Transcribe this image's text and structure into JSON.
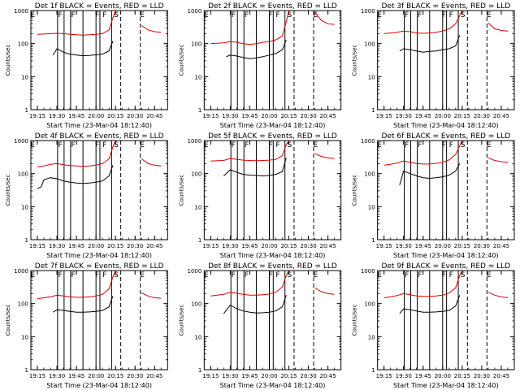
{
  "chart_data": [
    {
      "type": "line",
      "title": "Det 1f BLACK = Events, RED = LLD",
      "xlabel": "Start Time (23-Mar-04 18:12:40)",
      "ylabel": "Counts/sec",
      "xticks": [
        "19:15",
        "19:30",
        "19:45",
        "20:00",
        "20:15",
        "20:30",
        "20:45"
      ],
      "yticks": [
        "1",
        "10",
        "100",
        "1000"
      ],
      "yscale": "log",
      "ylim": [
        1,
        1000
      ],
      "markers": [
        "E",
        "F",
        "F",
        "F",
        "F",
        "S",
        "E"
      ],
      "series": [
        {
          "name": "Events",
          "color": "#000000",
          "x": [
            "19:27",
            "19:30",
            "19:35",
            "19:40",
            "19:45",
            "19:50",
            "19:55",
            "20:00",
            "20:05",
            "20:10",
            "20:13"
          ],
          "y": [
            45,
            70,
            55,
            48,
            45,
            43,
            44,
            46,
            48,
            60,
            120
          ]
        },
        {
          "name": "LLD",
          "color": "#dd0000",
          "x": [
            "19:15",
            "19:20",
            "19:25",
            "19:30",
            "19:35",
            "19:40",
            "19:45",
            "19:50",
            "19:55",
            "20:00",
            "20:05",
            "20:10",
            "20:13",
            "20:15",
            "20:35",
            "20:40",
            "20:45",
            "20:50"
          ],
          "y": [
            190,
            195,
            200,
            205,
            200,
            190,
            185,
            180,
            185,
            190,
            200,
            260,
            600,
            1000,
            350,
            260,
            230,
            220
          ]
        }
      ]
    },
    {
      "type": "line",
      "title": "Det 2f BLACK = Events, RED = LLD",
      "xlabel": "Start Time (23-Mar-04 18:12:40)",
      "ylabel": "Counts/sec",
      "xticks": [
        "19:15",
        "19:30",
        "19:45",
        "20:00",
        "20:15",
        "20:30",
        "20:45"
      ],
      "yticks": [
        "1",
        "10",
        "100",
        "1000"
      ],
      "yscale": "log",
      "ylim": [
        1,
        1000
      ],
      "markers": [
        "E",
        "F",
        "F",
        "F",
        "F",
        "S",
        "E"
      ],
      "series": [
        {
          "name": "Events",
          "color": "#000000",
          "x": [
            "19:27",
            "19:30",
            "19:35",
            "19:40",
            "19:45",
            "19:50",
            "19:55",
            "20:00",
            "20:05",
            "20:10",
            "20:13"
          ],
          "y": [
            40,
            45,
            42,
            38,
            35,
            37,
            40,
            45,
            50,
            65,
            130
          ]
        },
        {
          "name": "LLD",
          "color": "#dd0000",
          "x": [
            "19:15",
            "19:20",
            "19:25",
            "19:30",
            "19:35",
            "19:40",
            "19:45",
            "19:50",
            "19:55",
            "20:00",
            "20:05",
            "20:10",
            "20:13",
            "20:15",
            "20:35",
            "20:40",
            "20:45",
            "20:50"
          ],
          "y": [
            100,
            102,
            105,
            115,
            110,
            100,
            95,
            100,
            110,
            115,
            130,
            170,
            450,
            1000,
            900,
            500,
            400,
            380
          ]
        }
      ]
    },
    {
      "type": "line",
      "title": "Det 3f BLACK = Events, RED = LLD",
      "xlabel": "Start Time (23-Mar-04 18:12:40)",
      "ylabel": "Counts/sec",
      "xticks": [
        "19:15",
        "19:30",
        "19:45",
        "20:00",
        "20:15",
        "20:30",
        "20:45"
      ],
      "yticks": [
        "1",
        "10",
        "100",
        "1000"
      ],
      "yscale": "log",
      "ylim": [
        1,
        1000
      ],
      "markers": [
        "E",
        "F",
        "F",
        "F",
        "F",
        "S",
        "E"
      ],
      "series": [
        {
          "name": "Events",
          "color": "#000000",
          "x": [
            "19:27",
            "19:30",
            "19:35",
            "19:40",
            "19:45",
            "19:50",
            "19:55",
            "20:00",
            "20:05",
            "20:10",
            "20:13"
          ],
          "y": [
            60,
            70,
            65,
            60,
            55,
            58,
            60,
            65,
            70,
            85,
            180
          ]
        },
        {
          "name": "LLD",
          "color": "#dd0000",
          "x": [
            "19:15",
            "19:20",
            "19:25",
            "19:30",
            "19:35",
            "19:40",
            "19:45",
            "19:50",
            "19:55",
            "20:00",
            "20:05",
            "20:10",
            "20:13",
            "20:15",
            "20:35",
            "20:40",
            "20:45",
            "20:50"
          ],
          "y": [
            200,
            210,
            220,
            240,
            230,
            210,
            205,
            210,
            220,
            240,
            280,
            400,
            700,
            1000,
            420,
            280,
            250,
            240
          ]
        }
      ]
    },
    {
      "type": "line",
      "title": "Det 4f BLACK = Events, RED = LLD",
      "xlabel": "Start Time (23-Mar-04 18:12:40)",
      "ylabel": "Counts/sec",
      "xticks": [
        "19:15",
        "19:30",
        "19:45",
        "20:00",
        "20:15",
        "20:30",
        "20:45"
      ],
      "yticks": [
        "1",
        "10",
        "100",
        "1000"
      ],
      "yscale": "log",
      "ylim": [
        1,
        1000
      ],
      "markers": [
        "E",
        "F",
        "F",
        "F",
        "F",
        "S",
        "E"
      ],
      "series": [
        {
          "name": "Events",
          "color": "#000000",
          "x": [
            "19:15",
            "19:18",
            "19:20",
            "19:25",
            "19:30",
            "19:35",
            "19:40",
            "19:45",
            "19:50",
            "19:55",
            "20:00",
            "20:05",
            "20:10",
            "20:13"
          ],
          "y": [
            35,
            40,
            65,
            75,
            70,
            60,
            55,
            52,
            50,
            52,
            55,
            60,
            85,
            180
          ]
        },
        {
          "name": "LLD",
          "color": "#dd0000",
          "x": [
            "19:15",
            "19:20",
            "19:25",
            "19:30",
            "19:35",
            "19:40",
            "19:45",
            "19:50",
            "19:55",
            "20:00",
            "20:05",
            "20:10",
            "20:13",
            "20:15",
            "20:35",
            "20:40",
            "20:45",
            "20:50"
          ],
          "y": [
            160,
            170,
            190,
            200,
            185,
            175,
            170,
            165,
            170,
            180,
            200,
            280,
            650,
            1000,
            280,
            200,
            180,
            170
          ]
        }
      ]
    },
    {
      "type": "line",
      "title": "Det 5f BLACK = Events, RED = LLD",
      "xlabel": "Start Time (23-Mar-04 18:12:40)",
      "ylabel": "Counts/sec",
      "xticks": [
        "19:15",
        "19:30",
        "19:45",
        "20:00",
        "20:15",
        "20:30",
        "20:45"
      ],
      "yticks": [
        "1",
        "10",
        "100",
        "1000"
      ],
      "yscale": "log",
      "ylim": [
        1,
        1000
      ],
      "markers": [
        "E",
        "F",
        "F",
        "F",
        "F",
        "S",
        "E"
      ],
      "series": [
        {
          "name": "Events",
          "color": "#000000",
          "x": [
            "19:25",
            "19:30",
            "19:35",
            "19:40",
            "19:45",
            "19:50",
            "19:55",
            "20:00",
            "20:05",
            "20:10",
            "20:13"
          ],
          "y": [
            85,
            130,
            110,
            95,
            90,
            88,
            85,
            88,
            95,
            115,
            300
          ]
        },
        {
          "name": "LLD",
          "color": "#dd0000",
          "x": [
            "19:15",
            "19:20",
            "19:25",
            "19:30",
            "19:35",
            "19:40",
            "19:45",
            "19:50",
            "19:55",
            "20:00",
            "20:05",
            "20:10",
            "20:13",
            "20:15",
            "20:35",
            "20:40",
            "20:45",
            "20:50"
          ],
          "y": [
            240,
            245,
            250,
            290,
            270,
            255,
            250,
            245,
            250,
            255,
            270,
            350,
            750,
            1000,
            400,
            330,
            300,
            290
          ]
        }
      ]
    },
    {
      "type": "line",
      "title": "Det 6f BLACK = Events, RED = LLD",
      "xlabel": "Start Time (23-Mar-04 18:12:40)",
      "ylabel": "Counts/sec",
      "xticks": [
        "19:15",
        "19:30",
        "19:45",
        "20:00",
        "20:15",
        "20:30",
        "20:45"
      ],
      "yticks": [
        "1",
        "10",
        "100",
        "1000"
      ],
      "yscale": "log",
      "ylim": [
        1,
        1000
      ],
      "markers": [
        "E",
        "F",
        "F",
        "F",
        "F",
        "S",
        "E"
      ],
      "series": [
        {
          "name": "Events",
          "color": "#000000",
          "x": [
            "19:27",
            "19:30",
            "19:35",
            "19:40",
            "19:45",
            "19:50",
            "19:55",
            "20:00",
            "20:05",
            "20:10",
            "20:13"
          ],
          "y": [
            45,
            120,
            100,
            85,
            75,
            72,
            75,
            80,
            90,
            120,
            200
          ]
        },
        {
          "name": "LLD",
          "color": "#dd0000",
          "x": [
            "19:15",
            "19:20",
            "19:25",
            "19:30",
            "19:35",
            "19:40",
            "19:45",
            "19:50",
            "19:55",
            "20:00",
            "20:05",
            "20:10",
            "20:13",
            "20:15",
            "20:35",
            "20:40",
            "20:45",
            "20:50"
          ],
          "y": [
            180,
            190,
            210,
            240,
            220,
            200,
            195,
            195,
            205,
            220,
            260,
            380,
            700,
            1000,
            300,
            250,
            230,
            220
          ]
        }
      ]
    },
    {
      "type": "line",
      "title": "Det 7f BLACK = Events, RED = LLD",
      "xlabel": "Start Time (23-Mar-04 18:12:40)",
      "ylabel": "Counts/sec",
      "xticks": [
        "19:15",
        "19:30",
        "19:45",
        "20:00",
        "20:15",
        "20:30",
        "20:45"
      ],
      "yticks": [
        "1",
        "10",
        "100",
        "1000"
      ],
      "yscale": "log",
      "ylim": [
        1,
        1000
      ],
      "markers": [
        "E",
        "F",
        "F",
        "F",
        "F",
        "S",
        "E"
      ],
      "series": [
        {
          "name": "Events",
          "color": "#000000",
          "x": [
            "19:27",
            "19:30",
            "19:35",
            "19:40",
            "19:45",
            "19:50",
            "19:55",
            "20:00",
            "20:05",
            "20:10",
            "20:13"
          ],
          "y": [
            55,
            65,
            62,
            58,
            55,
            55,
            56,
            58,
            62,
            80,
            170
          ]
        },
        {
          "name": "LLD",
          "color": "#dd0000",
          "x": [
            "19:15",
            "19:20",
            "19:25",
            "19:30",
            "19:35",
            "19:40",
            "19:45",
            "19:50",
            "19:55",
            "20:00",
            "20:05",
            "20:10",
            "20:13",
            "20:15",
            "20:35",
            "20:40",
            "20:45",
            "20:50"
          ],
          "y": [
            140,
            150,
            160,
            180,
            170,
            160,
            155,
            155,
            160,
            170,
            190,
            280,
            650,
            1000,
            210,
            170,
            150,
            145
          ]
        }
      ]
    },
    {
      "type": "line",
      "title": "Det 8f BLACK = Events, RED = LLD",
      "xlabel": "Start Time (23-Mar-04 18:12:40)",
      "ylabel": "Counts/sec",
      "xticks": [
        "19:15",
        "19:30",
        "19:45",
        "20:00",
        "20:15",
        "20:30",
        "20:45"
      ],
      "yticks": [
        "1",
        "10",
        "100",
        "1000"
      ],
      "yscale": "log",
      "ylim": [
        1,
        1000
      ],
      "markers": [
        "E",
        "F",
        "F",
        "F",
        "F",
        "S",
        "E"
      ],
      "series": [
        {
          "name": "Events",
          "color": "#000000",
          "x": [
            "19:25",
            "19:30",
            "19:35",
            "19:40",
            "19:45",
            "19:50",
            "19:55",
            "20:00",
            "20:05",
            "20:10",
            "20:13"
          ],
          "y": [
            50,
            90,
            70,
            60,
            55,
            52,
            53,
            55,
            60,
            80,
            180
          ]
        },
        {
          "name": "LLD",
          "color": "#dd0000",
          "x": [
            "19:15",
            "19:20",
            "19:25",
            "19:30",
            "19:35",
            "19:40",
            "19:45",
            "19:50",
            "19:55",
            "20:00",
            "20:05",
            "20:10",
            "20:13",
            "20:15",
            "20:35",
            "20:40",
            "20:45",
            "20:50"
          ],
          "y": [
            170,
            180,
            190,
            220,
            205,
            190,
            180,
            180,
            185,
            195,
            220,
            320,
            700,
            1000,
            300,
            230,
            200,
            190
          ]
        }
      ]
    },
    {
      "type": "line",
      "title": "Det 9f BLACK = Events, RED = LLD",
      "xlabel": "Start Time (23-Mar-04 18:12:40)",
      "ylabel": "Counts/sec",
      "xticks": [
        "19:15",
        "19:30",
        "19:45",
        "20:00",
        "20:15",
        "20:30",
        "20:45"
      ],
      "yticks": [
        "1",
        "10",
        "100",
        "1000"
      ],
      "yscale": "log",
      "ylim": [
        1,
        1000
      ],
      "markers": [
        "E",
        "F",
        "F",
        "F",
        "F",
        "S",
        "E"
      ],
      "series": [
        {
          "name": "Events",
          "color": "#000000",
          "x": [
            "19:27",
            "19:30",
            "19:35",
            "19:40",
            "19:45",
            "19:50",
            "19:55",
            "20:00",
            "20:05",
            "20:10",
            "20:13"
          ],
          "y": [
            50,
            70,
            65,
            60,
            55,
            55,
            56,
            58,
            62,
            85,
            180
          ]
        },
        {
          "name": "LLD",
          "color": "#dd0000",
          "x": [
            "19:15",
            "19:20",
            "19:25",
            "19:30",
            "19:35",
            "19:40",
            "19:45",
            "19:50",
            "19:55",
            "20:00",
            "20:05",
            "20:10",
            "20:13",
            "20:15",
            "20:35",
            "20:40",
            "20:45",
            "20:50"
          ],
          "y": [
            150,
            160,
            175,
            200,
            185,
            170,
            165,
            165,
            170,
            180,
            210,
            300,
            700,
            1000,
            220,
            180,
            160,
            150
          ]
        }
      ]
    }
  ]
}
